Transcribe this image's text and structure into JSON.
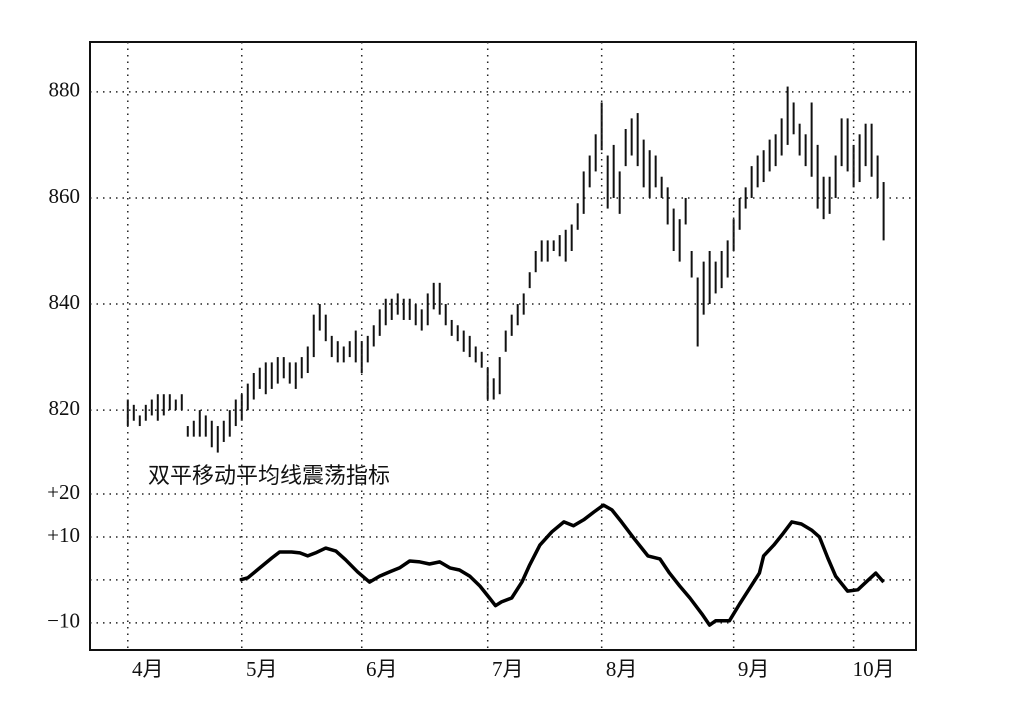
{
  "chart_data": [
    {
      "type": "range-bar",
      "color": "#111111",
      "grid": true,
      "xlim": [
        -6.3,
        131.4
      ],
      "ylim": [
        810.6,
        889.4
      ],
      "yticks": [
        820,
        840,
        860,
        880
      ],
      "x": [
        0,
        1,
        2,
        3,
        4,
        5,
        6,
        7,
        8,
        9,
        10,
        11,
        12,
        13,
        14,
        15,
        16,
        17,
        18,
        19,
        20,
        21,
        22,
        23,
        24,
        25,
        26,
        27,
        28,
        29,
        30,
        31,
        32,
        33,
        34,
        35,
        36,
        37,
        38,
        39,
        40,
        41,
        42,
        43,
        44,
        45,
        46,
        47,
        48,
        49,
        50,
        51,
        52,
        53,
        54,
        55,
        56,
        57,
        58,
        59,
        60,
        61,
        62,
        63,
        64,
        65,
        66,
        67,
        68,
        69,
        70,
        71,
        72,
        73,
        74,
        75,
        76,
        77,
        78,
        79,
        80,
        81,
        82,
        83,
        84,
        85,
        86,
        87,
        88,
        89,
        90,
        91,
        92,
        93,
        94,
        95,
        96,
        97,
        98,
        99,
        100,
        101,
        102,
        103,
        104,
        105,
        106,
        107,
        108,
        109,
        110,
        111,
        112,
        113,
        114,
        115,
        116,
        117,
        118,
        119,
        120,
        121,
        122,
        123,
        124,
        125,
        126
      ],
      "lows": [
        817,
        818,
        817,
        818,
        819,
        818,
        819,
        820,
        820,
        820,
        815,
        815,
        815,
        815,
        813,
        812,
        814,
        815,
        817,
        818,
        820,
        822,
        824,
        823,
        824,
        825,
        826,
        825,
        824,
        826,
        827,
        830,
        835,
        833,
        830,
        829,
        829,
        830,
        829,
        827,
        829,
        832,
        834,
        836,
        837,
        838,
        837,
        837,
        836,
        835,
        836,
        839,
        838,
        836,
        834,
        833,
        831,
        830,
        829,
        828,
        822,
        822,
        823,
        831,
        834,
        836,
        838,
        843,
        846,
        848,
        848,
        850,
        849,
        848,
        850,
        854,
        857,
        862,
        865,
        869,
        858,
        860,
        857,
        866,
        868,
        866,
        862,
        860,
        862,
        860,
        855,
        850,
        848,
        855,
        845,
        832,
        838,
        840,
        842,
        843,
        845,
        850,
        854,
        858,
        860,
        862,
        863,
        865,
        866,
        868,
        870,
        872,
        868,
        866,
        864,
        858,
        856,
        857,
        860,
        866,
        865,
        862,
        863,
        866,
        864,
        860,
        852
      ],
      "highs": [
        822,
        821,
        819,
        821,
        822,
        823,
        823,
        823,
        822,
        823,
        817,
        818,
        820,
        819,
        818,
        817,
        818,
        820,
        822,
        823,
        825,
        827,
        828,
        829,
        829,
        830,
        830,
        829,
        829,
        830,
        832,
        838,
        840,
        838,
        834,
        833,
        832,
        833,
        835,
        833,
        834,
        836,
        839,
        841,
        841,
        842,
        841,
        841,
        840,
        839,
        842,
        844,
        844,
        840,
        837,
        836,
        835,
        834,
        832,
        831,
        828,
        826,
        830,
        835,
        838,
        840,
        842,
        846,
        850,
        852,
        852,
        852,
        853,
        854,
        855,
        859,
        865,
        868,
        872,
        878,
        868,
        870,
        865,
        873,
        875,
        876,
        871,
        869,
        868,
        864,
        862,
        858,
        856,
        860,
        850,
        845,
        848,
        850,
        848,
        850,
        852,
        856,
        860,
        862,
        866,
        868,
        869,
        871,
        872,
        875,
        881,
        878,
        874,
        872,
        878,
        870,
        864,
        864,
        868,
        875,
        875,
        870,
        872,
        874,
        874,
        868,
        863
      ]
    },
    {
      "type": "line",
      "title": "双平移动平均线震荡指标",
      "color": "#000000",
      "grid": true,
      "xlim": [
        -6.3,
        131.4
      ],
      "ylim": [
        -16.3,
        27.9
      ],
      "yticks": [
        {
          "value": 20,
          "label": "+20"
        },
        {
          "value": 10,
          "label": "+10"
        },
        {
          "value": 0,
          "label": null
        },
        {
          "value": -10,
          "label": "−10"
        }
      ],
      "xticks": [
        {
          "value": 0,
          "label": "4月"
        },
        {
          "value": 19,
          "label": "5月"
        },
        {
          "value": 39,
          "label": "6月"
        },
        {
          "value": 60,
          "label": "7月"
        },
        {
          "value": 79,
          "label": "8月"
        },
        {
          "value": 101,
          "label": "9月"
        },
        {
          "value": 121,
          "label": "10月"
        }
      ],
      "x": [
        18.7,
        20,
        22,
        24,
        25.3,
        27.3,
        28.7,
        30,
        31.3,
        33,
        34.7,
        36.3,
        38.3,
        40.3,
        42,
        43.7,
        45.3,
        47,
        48.7,
        50.3,
        52,
        53.7,
        55.3,
        57,
        58.7,
        60.3,
        61.3,
        62.3,
        64,
        65.7,
        67,
        68.7,
        70.7,
        72.7,
        74.3,
        76,
        77.7,
        79.3,
        80.7,
        82.3,
        84.3,
        86.7,
        88.7,
        90.3,
        92,
        93.7,
        95.7,
        97,
        98,
        100.3,
        102,
        103.7,
        105.3,
        106,
        107.7,
        109.3,
        110.7,
        112.3,
        114,
        115.3,
        116.7,
        118,
        120,
        121.7,
        123.3,
        124.7,
        126
      ],
      "values": [
        0,
        0.5,
        2.8,
        5.1,
        6.5,
        6.5,
        6.3,
        5.6,
        6.3,
        7.4,
        6.7,
        4.7,
        1.9,
        -0.5,
        0.9,
        1.9,
        2.8,
        4.4,
        4.2,
        3.7,
        4.2,
        2.8,
        2.3,
        0.9,
        -1.4,
        -4.2,
        -6.0,
        -5.1,
        -4.2,
        -0.5,
        3.5,
        8.1,
        11.2,
        13.5,
        12.6,
        14.0,
        15.8,
        17.4,
        16.3,
        13.5,
        9.8,
        5.6,
        4.9,
        1.6,
        -1.4,
        -4.2,
        -7.9,
        -10.5,
        -9.5,
        -9.5,
        -5.6,
        -1.9,
        1.6,
        5.6,
        8.1,
        10.9,
        13.5,
        13.0,
        11.6,
        10.0,
        5.1,
        0.9,
        -2.6,
        -2.3,
        -0.2,
        1.6,
        -0.5
      ]
    }
  ]
}
